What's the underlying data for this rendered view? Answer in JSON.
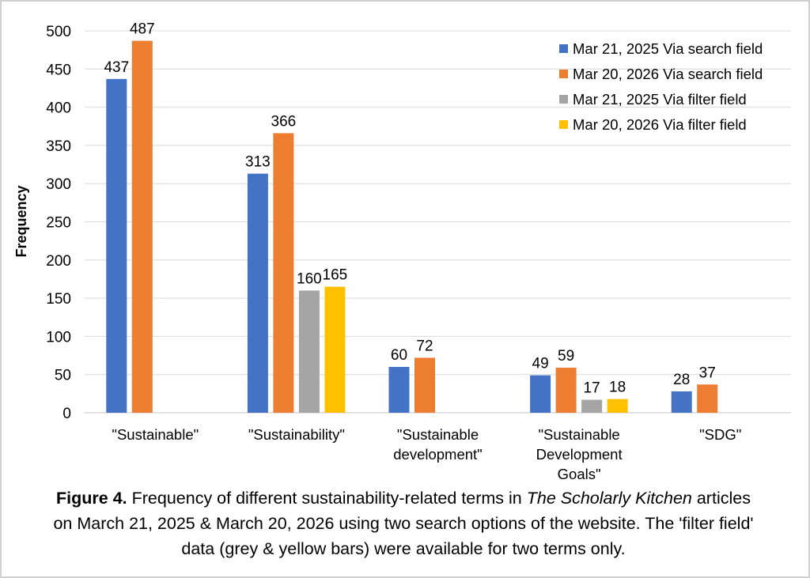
{
  "chart_data": {
    "type": "bar",
    "categories": [
      "\"Sustainable\"",
      "\"Sustainability\"",
      "\"Sustainable development\"",
      "\"Sustainable Development Goals\"",
      " \"SDG\""
    ],
    "category_lines": [
      [
        "\"Sustainable\""
      ],
      [
        "\"Sustainability\""
      ],
      [
        "\"Sustainable",
        "development\""
      ],
      [
        "\"Sustainable",
        "Development",
        "Goals\""
      ],
      [
        "\"SDG\""
      ]
    ],
    "series": [
      {
        "name": "Mar 21, 2025 Via search field",
        "color": "#4472C4",
        "values": [
          437,
          313,
          60,
          49,
          28
        ]
      },
      {
        "name": "Mar 20, 2026 Via search field",
        "color": "#ED7D31",
        "values": [
          487,
          366,
          72,
          59,
          37
        ]
      },
      {
        "name": "Mar 21, 2025 Via filter field",
        "color": "#A5A5A5",
        "values": [
          null,
          160,
          null,
          17,
          null
        ]
      },
      {
        "name": "Mar 20, 2026 Via filter field",
        "color": "#FFC000",
        "values": [
          null,
          165,
          null,
          18,
          null
        ]
      }
    ],
    "xlabel": "",
    "ylabel": "Frequency",
    "ylim": [
      0,
      500
    ],
    "yticks": [
      0,
      50,
      100,
      150,
      200,
      250,
      300,
      350,
      400,
      450,
      500
    ],
    "grid": true,
    "legend": "top-right",
    "data_labels": true
  },
  "caption": {
    "label": "Figure 4.",
    "text1": " Frequency of different sustainability-related terms in ",
    "italic": "The Scholarly Kitchen",
    "text2": " articles on March 21, 2025 & March 20, 2026 using two search options of the website. The 'filter field' data (grey & yellow bars) were available for two terms only."
  }
}
